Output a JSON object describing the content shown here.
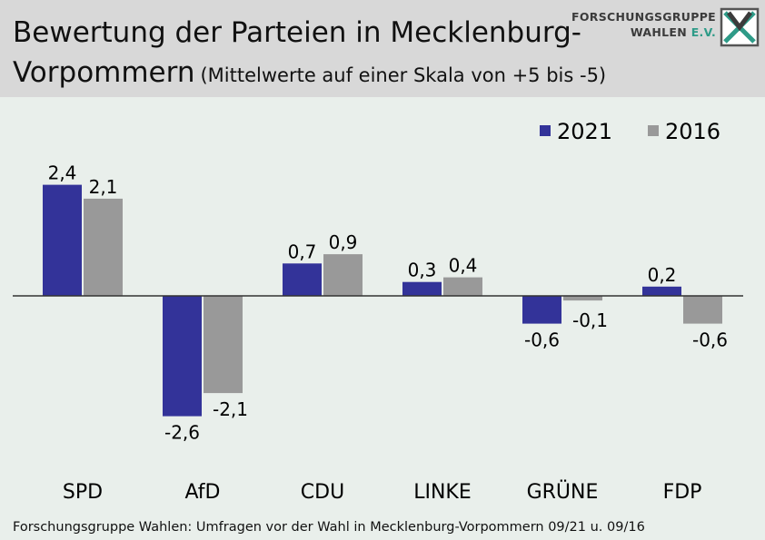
{
  "title": {
    "line1": "Bewertung der Parteien in Mecklenburg-",
    "line2": "Vorpommern",
    "subtitle": "(Mittelwerte auf einer Skala von +5 bis -5)"
  },
  "logo": {
    "line1": "FORSCHUNGSGRUPPE",
    "line2": "WAHLEN",
    "line2_suffix": "E.V."
  },
  "footer": "Forschungsgruppe Wahlen: Umfragen vor der Wahl in Mecklenburg-Vorpommern 09/21 u. 09/16",
  "colors": {
    "series_2021": "#333399",
    "series_2016": "#999999",
    "header_bg": "#d8d8d8",
    "plot_bg": "#e9efeb",
    "logo_accent": "#2e9b88"
  },
  "chart_data": {
    "type": "bar",
    "categories": [
      "SPD",
      "AfD",
      "CDU",
      "LINKE",
      "GRÜNE",
      "FDP"
    ],
    "series": [
      {
        "name": "2021",
        "values": [
          2.4,
          -2.6,
          0.7,
          0.3,
          -0.6,
          0.2
        ],
        "labels": [
          "2,4",
          "-2,6",
          "0,7",
          "0,3",
          "-0,6",
          "0,2"
        ]
      },
      {
        "name": "2016",
        "values": [
          2.1,
          -2.1,
          0.9,
          0.4,
          -0.1,
          -0.6
        ],
        "labels": [
          "2,1",
          "-2,1",
          "0,9",
          "0,4",
          "-0,1",
          "-0,6"
        ]
      }
    ],
    "ylim": [
      -5,
      5
    ],
    "grid": false,
    "legend_position": "top-right"
  }
}
